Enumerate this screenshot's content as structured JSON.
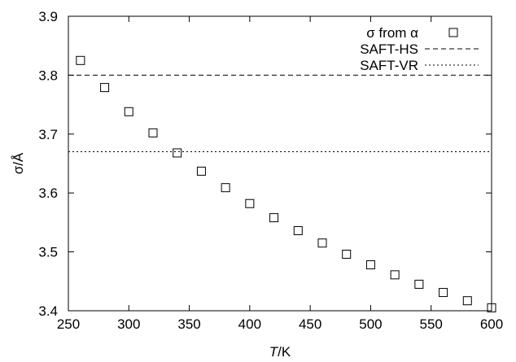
{
  "chart_data": {
    "type": "scatter",
    "xlabel_italic": "T",
    "xlabel_rest": "/K",
    "ylabel": "σ/Å",
    "xlim": [
      250,
      600
    ],
    "ylim": [
      3.4,
      3.9
    ],
    "xticks": [
      250,
      300,
      350,
      400,
      450,
      500,
      550,
      600
    ],
    "yticks": [
      3.4,
      3.5,
      3.6,
      3.7,
      3.8,
      3.9
    ],
    "xtick_labels": [
      "250",
      "300",
      "350",
      "400",
      "450",
      "500",
      "550",
      "600"
    ],
    "ytick_labels": [
      "3.4",
      "3.5",
      "3.6",
      "3.7",
      "3.8",
      "3.9"
    ],
    "legend_position": "top-right",
    "series": [
      {
        "name": "σ from α",
        "marker": "open-square",
        "x": [
          260,
          280,
          300,
          320,
          340,
          360,
          380,
          400,
          420,
          440,
          460,
          480,
          500,
          520,
          540,
          560,
          580,
          600
        ],
        "y": [
          3.825,
          3.779,
          3.738,
          3.702,
          3.668,
          3.637,
          3.609,
          3.582,
          3.558,
          3.536,
          3.515,
          3.496,
          3.478,
          3.461,
          3.445,
          3.431,
          3.417,
          3.405
        ]
      },
      {
        "name": "SAFT-HS",
        "line": "dashed",
        "value": 3.8
      },
      {
        "name": "SAFT-VR",
        "line": "dotted",
        "value": 3.67
      }
    ]
  }
}
